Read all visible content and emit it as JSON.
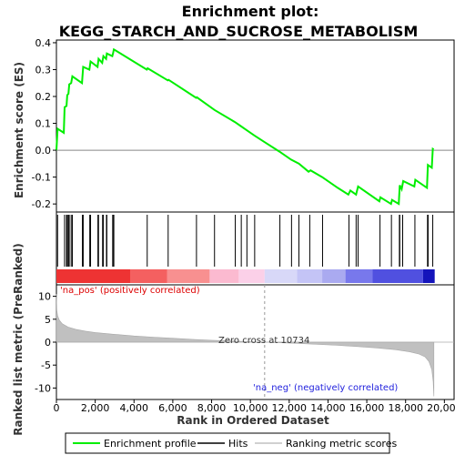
{
  "chart_data": {
    "type": "line",
    "title": "Enrichment plot:",
    "subtitle": "KEGG_STARCH_AND_SUCROSE_METABOLISM",
    "xlabel": "Rank in Ordered Dataset",
    "es_panel": {
      "ylabel": "Enrichment score (ES)",
      "ylim": [
        -0.23,
        0.41
      ],
      "yticks": [
        {
          "v": 0.4,
          "label": "0.4"
        },
        {
          "v": 0.3,
          "label": "0.3"
        },
        {
          "v": 0.2,
          "label": "0.2"
        },
        {
          "v": 0.1,
          "label": "0.1"
        },
        {
          "v": 0.0,
          "label": "0.0"
        },
        {
          "v": -0.1,
          "label": "-0.1"
        },
        {
          "v": -0.2,
          "label": "-0.2"
        }
      ],
      "series_name": "Enrichment profile",
      "color": "#00ee00",
      "points": [
        [
          0,
          0.0
        ],
        [
          60,
          0.08
        ],
        [
          380,
          0.065
        ],
        [
          420,
          0.16
        ],
        [
          520,
          0.165
        ],
        [
          560,
          0.205
        ],
        [
          620,
          0.21
        ],
        [
          660,
          0.245
        ],
        [
          760,
          0.25
        ],
        [
          820,
          0.275
        ],
        [
          1320,
          0.25
        ],
        [
          1380,
          0.31
        ],
        [
          1700,
          0.3
        ],
        [
          1760,
          0.33
        ],
        [
          2120,
          0.31
        ],
        [
          2170,
          0.34
        ],
        [
          2360,
          0.325
        ],
        [
          2420,
          0.35
        ],
        [
          2560,
          0.34
        ],
        [
          2600,
          0.36
        ],
        [
          2880,
          0.35
        ],
        [
          2920,
          0.36
        ],
        [
          2960,
          0.375
        ],
        [
          4660,
          0.3
        ],
        [
          4700,
          0.305
        ],
        [
          5740,
          0.26
        ],
        [
          5780,
          0.262
        ],
        [
          7200,
          0.195
        ],
        [
          7240,
          0.197
        ],
        [
          8150,
          0.15
        ],
        [
          9200,
          0.105
        ],
        [
          9500,
          0.09
        ],
        [
          9800,
          0.075
        ],
        [
          10200,
          0.055
        ],
        [
          10734,
          0.03
        ],
        [
          11500,
          -0.005
        ],
        [
          12100,
          -0.035
        ],
        [
          12500,
          -0.05
        ],
        [
          13000,
          -0.08
        ],
        [
          13100,
          -0.075
        ],
        [
          13700,
          -0.1
        ],
        [
          14500,
          -0.14
        ],
        [
          15050,
          -0.165
        ],
        [
          15150,
          -0.15
        ],
        [
          15450,
          -0.165
        ],
        [
          15550,
          -0.135
        ],
        [
          16650,
          -0.19
        ],
        [
          16700,
          -0.175
        ],
        [
          17250,
          -0.2
        ],
        [
          17300,
          -0.185
        ],
        [
          17650,
          -0.2
        ],
        [
          17700,
          -0.13
        ],
        [
          17800,
          -0.145
        ],
        [
          17880,
          -0.115
        ],
        [
          18450,
          -0.135
        ],
        [
          18500,
          -0.11
        ],
        [
          19100,
          -0.14
        ],
        [
          19150,
          -0.055
        ],
        [
          19350,
          -0.065
        ],
        [
          19400,
          0.005
        ],
        [
          19450,
          0.003
        ]
      ]
    },
    "hits_panel": {
      "series_name": "Hits",
      "hit_ranks": [
        60,
        420,
        520,
        560,
        620,
        660,
        760,
        820,
        1340,
        1380,
        1720,
        1760,
        2140,
        2170,
        2380,
        2420,
        2580,
        2600,
        2900,
        2940,
        2960,
        4680,
        5760,
        7220,
        8150,
        9220,
        9530,
        9820,
        10220,
        11520,
        12120,
        12500,
        13060,
        13720,
        15080,
        15450,
        15550,
        16680,
        17270,
        17680,
        17700,
        17850,
        18480,
        19130,
        19160,
        19400
      ]
    },
    "metric_panel": {
      "ylabel": "Ranked list metric (PreRanked)",
      "series_name": "Ranking metric scores",
      "ylim": [
        -12.5,
        12.5
      ],
      "yticks": [
        {
          "v": 10,
          "label": "10"
        },
        {
          "v": 5,
          "label": "5"
        },
        {
          "v": 0,
          "label": "0"
        },
        {
          "v": -5,
          "label": "-5"
        },
        {
          "v": -10,
          "label": "-10"
        }
      ],
      "fill_color": "#c0c0c0",
      "curve": [
        [
          0,
          10.5
        ],
        [
          20,
          7.0
        ],
        [
          60,
          5.8
        ],
        [
          150,
          4.8
        ],
        [
          300,
          4.0
        ],
        [
          600,
          3.3
        ],
        [
          1000,
          2.8
        ],
        [
          1500,
          2.4
        ],
        [
          2000,
          2.1
        ],
        [
          3000,
          1.7
        ],
        [
          4000,
          1.35
        ],
        [
          5000,
          1.1
        ],
        [
          6000,
          0.85
        ],
        [
          7000,
          0.62
        ],
        [
          8000,
          0.42
        ],
        [
          9000,
          0.25
        ],
        [
          10000,
          0.1
        ],
        [
          10734,
          0.0
        ],
        [
          11500,
          -0.12
        ],
        [
          12500,
          -0.3
        ],
        [
          13500,
          -0.5
        ],
        [
          14500,
          -0.7
        ],
        [
          15500,
          -0.95
        ],
        [
          16500,
          -1.25
        ],
        [
          17500,
          -1.65
        ],
        [
          18200,
          -2.1
        ],
        [
          18700,
          -2.6
        ],
        [
          19000,
          -3.2
        ],
        [
          19200,
          -4.2
        ],
        [
          19350,
          -6.0
        ],
        [
          19420,
          -8.5
        ],
        [
          19460,
          -11.8
        ]
      ],
      "zero_cross_rank": 10734,
      "zero_cross_label": "Zero cross at 10734",
      "pos_label": "'na_pos' (positively correlated)",
      "neg_label": "'na_neg' (negatively correlated)"
    },
    "x_axis": {
      "xlim": [
        0,
        20500
      ],
      "xticks": [
        {
          "v": 0,
          "label": "0"
        },
        {
          "v": 2000,
          "label": "2,000"
        },
        {
          "v": 4000,
          "label": "4,000"
        },
        {
          "v": 6000,
          "label": "6,000"
        },
        {
          "v": 8000,
          "label": "8,000"
        },
        {
          "v": 10000,
          "label": "10,000"
        },
        {
          "v": 12000,
          "label": "12,000"
        },
        {
          "v": 14000,
          "label": "14,000"
        },
        {
          "v": 16000,
          "label": "16,000"
        },
        {
          "v": 18000,
          "label": "18,000"
        },
        {
          "v": 20000,
          "label": "20,000"
        }
      ],
      "total_ranks": 19500
    },
    "color_bar": {
      "segments": [
        {
          "from": 0,
          "to": 3800,
          "color": "#ee3333"
        },
        {
          "from": 3800,
          "to": 5700,
          "color": "#f46060"
        },
        {
          "from": 5700,
          "to": 7900,
          "color": "#f89090"
        },
        {
          "from": 7900,
          "to": 9400,
          "color": "#fbbad0"
        },
        {
          "from": 9400,
          "to": 10734,
          "color": "#fbd0e8"
        },
        {
          "from": 10734,
          "to": 12400,
          "color": "#d8d8f8"
        },
        {
          "from": 12400,
          "to": 13700,
          "color": "#c4c4f6"
        },
        {
          "from": 13700,
          "to": 14900,
          "color": "#aaaaf0"
        },
        {
          "from": 14900,
          "to": 16300,
          "color": "#7878ec"
        },
        {
          "from": 16300,
          "to": 18900,
          "color": "#5050e0"
        },
        {
          "from": 18900,
          "to": 19500,
          "color": "#1414bb"
        }
      ]
    },
    "legend": {
      "placement": "bottom",
      "items": [
        {
          "label": "Enrichment profile",
          "kind": "line",
          "color": "#00ee00"
        },
        {
          "label": "Hits",
          "kind": "line",
          "color": "#000000"
        },
        {
          "label": "Ranking metric scores",
          "kind": "line",
          "color": "#c0c0c0"
        }
      ]
    }
  }
}
